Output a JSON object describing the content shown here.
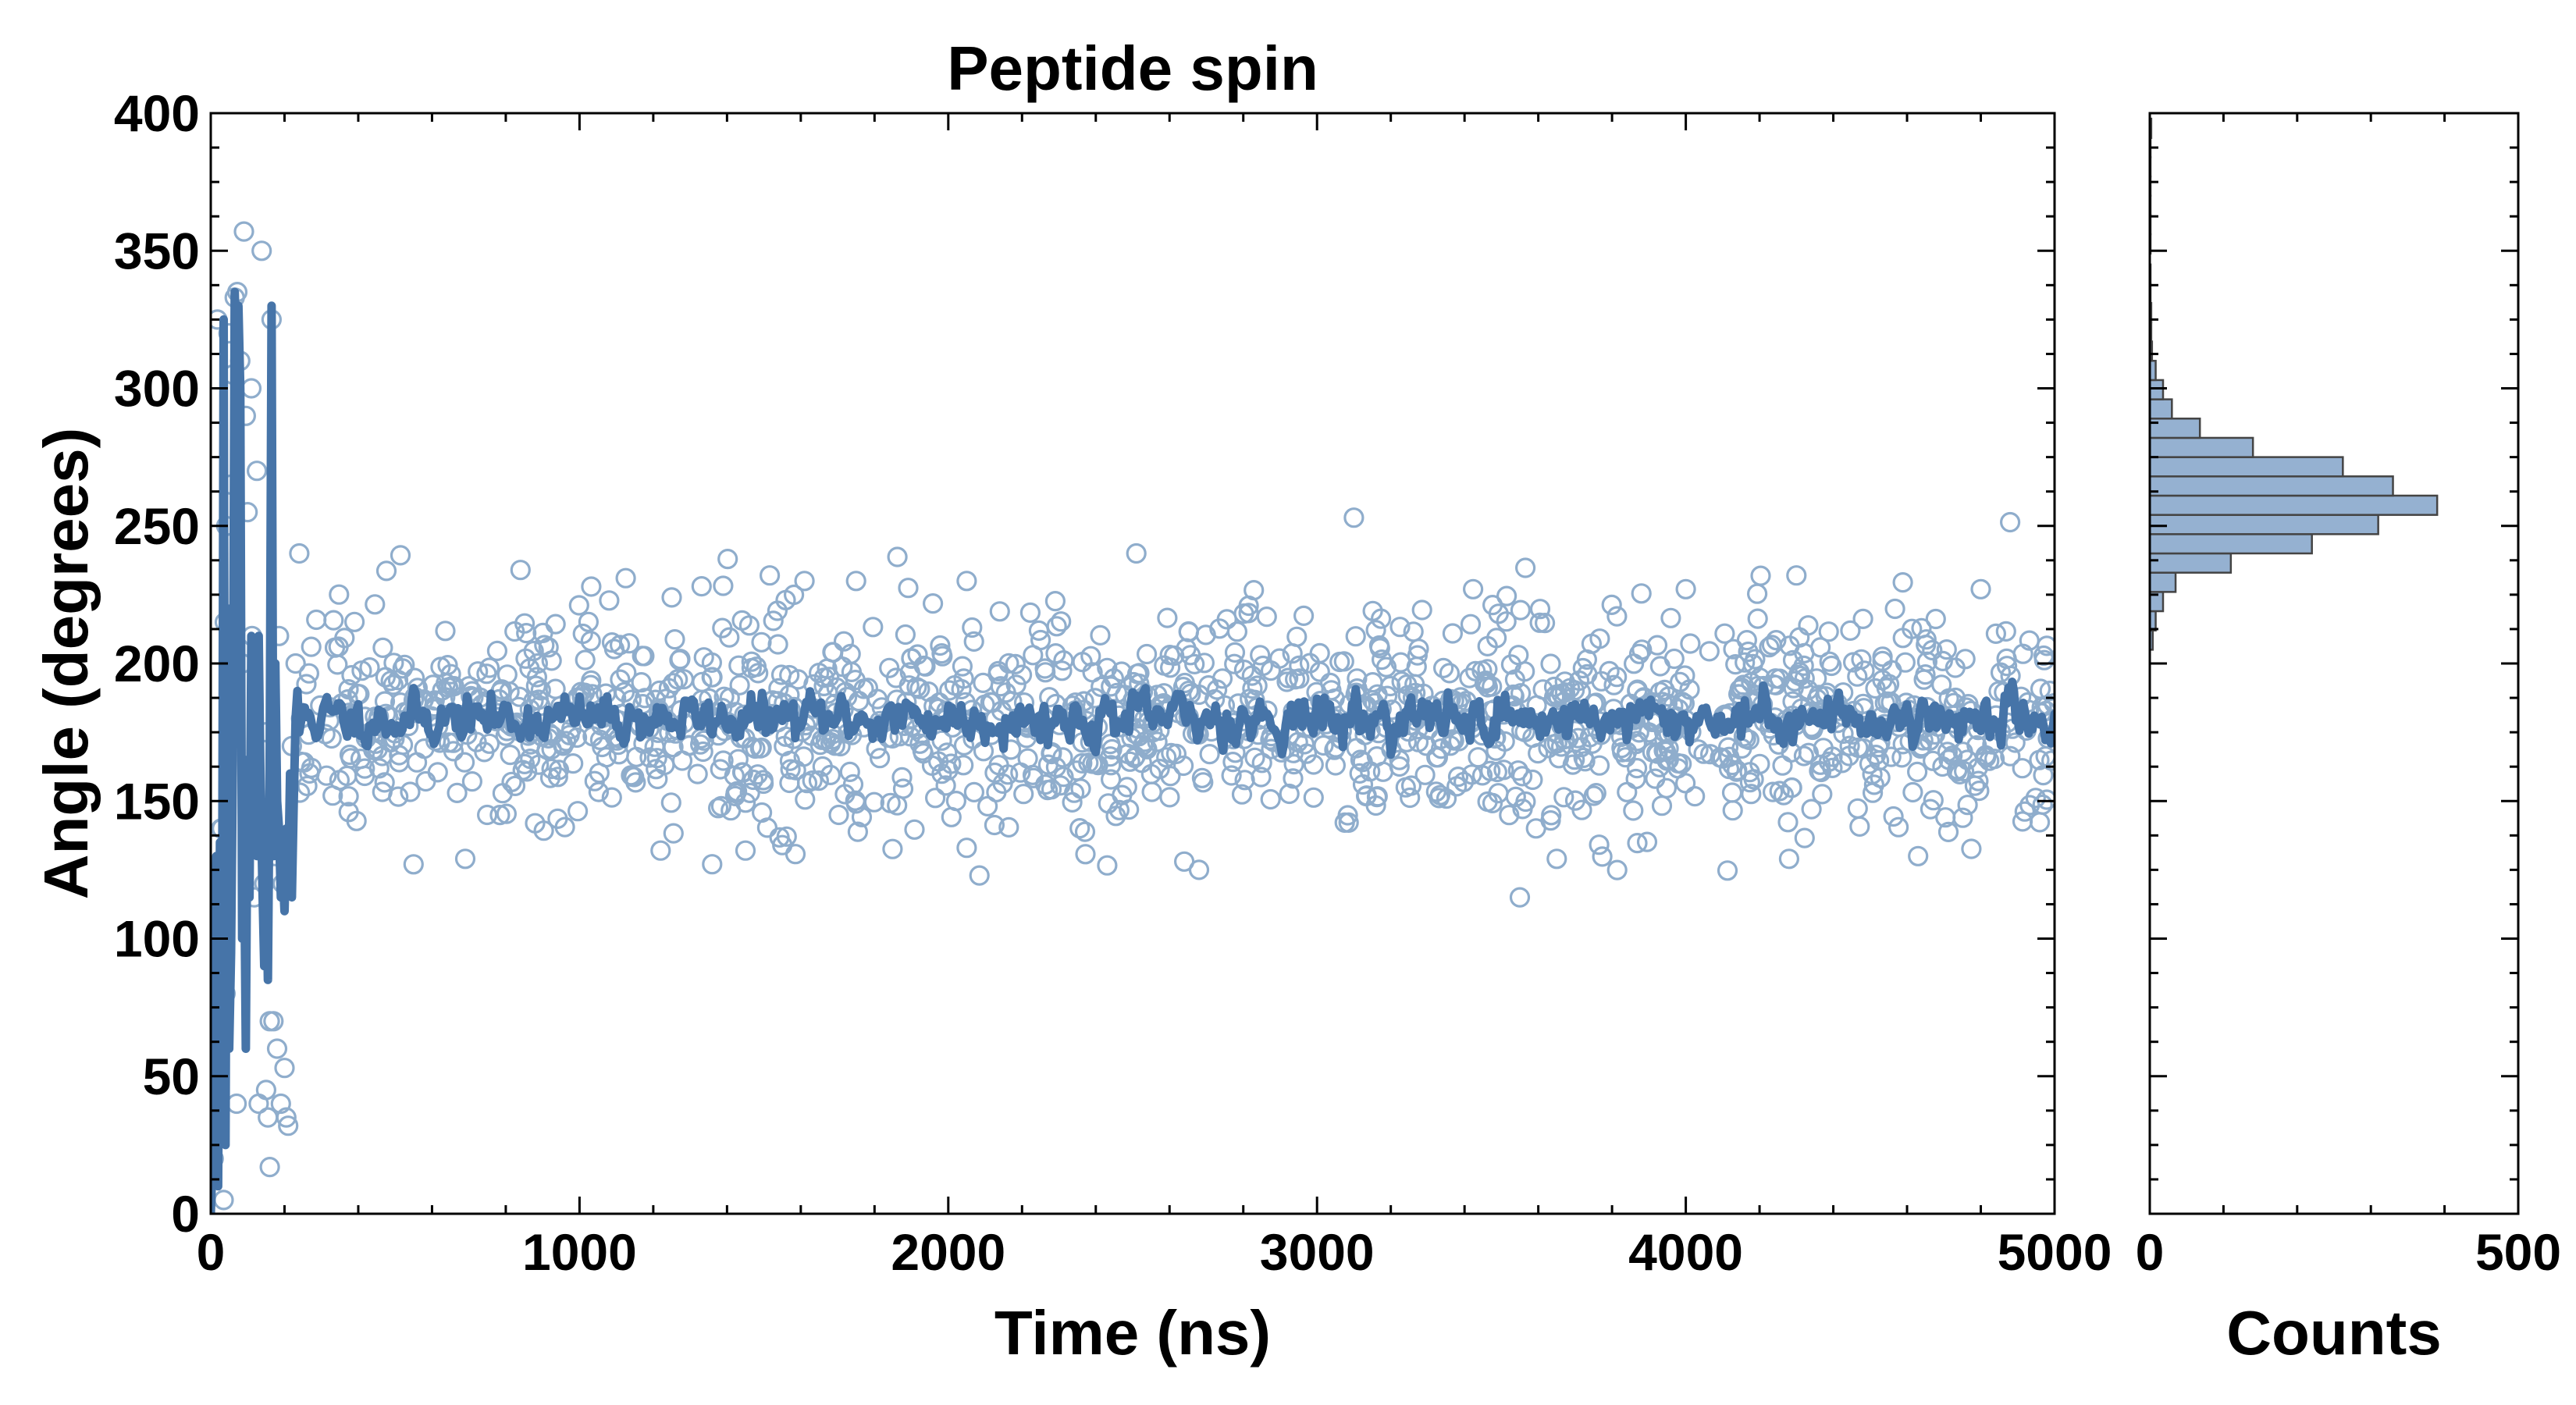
{
  "chart_data": [
    {
      "type": "scatter",
      "title": "Peptide spin",
      "xlabel": "Time (ns)",
      "ylabel": "Angle (degrees)",
      "xlim": [
        0,
        5000
      ],
      "ylim": [
        0,
        400
      ],
      "xticks": [
        0,
        1000,
        2000,
        3000,
        4000,
        5000
      ],
      "yticks": [
        0,
        50,
        100,
        150,
        200,
        250,
        300,
        350,
        400
      ],
      "grid": false,
      "legend": "none",
      "series": [
        {
          "kind": "scatter-open-circles",
          "color": "#8fadcc",
          "points_early": [
            [
              8,
              20
            ],
            [
              12,
              95
            ],
            [
              18,
              325
            ],
            [
              22,
              60
            ],
            [
              28,
              140
            ],
            [
              35,
              5
            ],
            [
              38,
              215
            ],
            [
              42,
              250
            ],
            [
              48,
              320
            ],
            [
              55,
              265
            ],
            [
              60,
              305
            ],
            [
              65,
              333
            ],
            [
              72,
              335
            ],
            [
              80,
              310
            ],
            [
              85,
              200
            ],
            [
              90,
              357
            ],
            [
              95,
              290
            ],
            [
              100,
              255
            ],
            [
              105,
              160
            ],
            [
              110,
              300
            ],
            [
              118,
              115
            ],
            [
              125,
              270
            ],
            [
              130,
              40
            ],
            [
              138,
              350
            ],
            [
              145,
              120
            ],
            [
              150,
              175
            ],
            [
              155,
              35
            ],
            [
              160,
              17
            ],
            [
              165,
              325
            ],
            [
              170,
              70
            ],
            [
              175,
              130
            ],
            [
              180,
              60
            ],
            [
              185,
              210
            ],
            [
              190,
              40
            ],
            [
              195,
              120
            ],
            [
              200,
              53
            ],
            [
              205,
              35
            ],
            [
              210,
              32
            ],
            [
              220,
              170
            ],
            [
              230,
              200
            ],
            [
              240,
              240
            ],
            [
              245,
              180
            ],
            [
              70,
              40
            ],
            [
              30,
              140
            ],
            [
              40,
              80
            ],
            [
              112,
              210
            ],
            [
              150,
              45
            ],
            [
              160,
              70
            ]
          ],
          "outliers": [
            [
              840,
              234
            ],
            [
              1250,
              224
            ],
            [
              1610,
              230
            ],
            [
              1750,
              230
            ],
            [
              2050,
              230
            ],
            [
              2510,
              240
            ],
            [
              3100,
              253
            ],
            [
              4000,
              227
            ],
            [
              4300,
              232
            ],
            [
              4800,
              227
            ],
            [
              3550,
              115
            ],
            [
              3650,
              129
            ],
            [
              2640,
              128
            ],
            [
              2680,
              125
            ],
            [
              1220,
              132
            ],
            [
              1450,
              132
            ],
            [
              4280,
              129
            ],
            [
              4630,
              130
            ],
            [
              550,
              127
            ],
            [
              690,
              129
            ],
            [
              2050,
              133
            ],
            [
              1550,
              134
            ]
          ],
          "band": {
            "x_start": 240,
            "x_end": 5000,
            "count": 1450,
            "center": 180,
            "spread": 19,
            "seed": 7
          }
        },
        {
          "kind": "line",
          "color": "#4674a8",
          "points_early": [
            [
              0,
              0
            ],
            [
              10,
              40
            ],
            [
              15,
              130
            ],
            [
              20,
              10
            ],
            [
              25,
              135
            ],
            [
              30,
              60
            ],
            [
              35,
              325
            ],
            [
              40,
              25
            ],
            [
              45,
              220
            ],
            [
              50,
              60
            ],
            [
              55,
              95
            ],
            [
              60,
              165
            ],
            [
              65,
              335
            ],
            [
              70,
              305
            ],
            [
              75,
              330
            ],
            [
              80,
              300
            ],
            [
              85,
              100
            ],
            [
              90,
              140
            ],
            [
              95,
              60
            ],
            [
              100,
              165
            ],
            [
              105,
              115
            ],
            [
              110,
              210
            ],
            [
              115,
              155
            ],
            [
              120,
              135
            ],
            [
              125,
              130
            ],
            [
              130,
              210
            ],
            [
              135,
              155
            ],
            [
              140,
              120
            ],
            [
              145,
              90
            ],
            [
              150,
              125
            ],
            [
              155,
              85
            ],
            [
              160,
              170
            ],
            [
              165,
              330
            ],
            [
              170,
              130
            ],
            [
              175,
              200
            ],
            [
              180,
              150
            ],
            [
              185,
              140
            ],
            [
              190,
              115
            ],
            [
              195,
              125
            ],
            [
              200,
              110
            ],
            [
              205,
              140
            ],
            [
              210,
              120
            ],
            [
              215,
              160
            ],
            [
              220,
              115
            ],
            [
              225,
              150
            ],
            [
              230,
              180
            ],
            [
              235,
              190
            ],
            [
              240,
              175
            ]
          ],
          "band": {
            "x_start": 240,
            "x_end": 5000,
            "step": 5,
            "center": 180,
            "spread": 8,
            "seed": 11
          }
        }
      ]
    },
    {
      "type": "bar",
      "orientation": "horizontal",
      "xlabel": "Counts",
      "xlim": [
        0,
        500
      ],
      "xticks": [
        0,
        500
      ],
      "ylim": [
        0,
        400
      ],
      "bar_color": "#95b1d1",
      "edge_color": "#444444",
      "bins": [
        {
          "y0": 205,
          "y1": 212,
          "value": 4
        },
        {
          "y0": 212,
          "y1": 219,
          "value": 8
        },
        {
          "y0": 219,
          "y1": 226,
          "value": 18
        },
        {
          "y0": 226,
          "y1": 233,
          "value": 35
        },
        {
          "y0": 233,
          "y1": 240,
          "value": 110
        },
        {
          "y0": 240,
          "y1": 247,
          "value": 220
        },
        {
          "y0": 247,
          "y1": 254,
          "value": 310
        },
        {
          "y0": 254,
          "y1": 261,
          "value": 390
        },
        {
          "y0": 261,
          "y1": 268,
          "value": 330
        },
        {
          "y0": 268,
          "y1": 275,
          "value": 262
        },
        {
          "y0": 275,
          "y1": 282,
          "value": 140
        },
        {
          "y0": 282,
          "y1": 289,
          "value": 68
        },
        {
          "y0": 289,
          "y1": 296,
          "value": 30
        },
        {
          "y0": 296,
          "y1": 303,
          "value": 18
        },
        {
          "y0": 303,
          "y1": 310,
          "value": 8
        },
        {
          "y0": 310,
          "y1": 317,
          "value": 3
        },
        {
          "y0": 317,
          "y1": 324,
          "value": 2
        },
        {
          "y0": 324,
          "y1": 331,
          "value": 2
        },
        {
          "y0": 331,
          "y1": 338,
          "value": 1
        },
        {
          "y0": 338,
          "y1": 345,
          "value": 1
        },
        {
          "y0": 349,
          "y1": 356,
          "value": 1
        },
        {
          "y0": 356,
          "y1": 363,
          "value": 1
        },
        {
          "y0": 363,
          "y1": 370,
          "value": 1
        },
        {
          "y0": 370,
          "y1": 377,
          "value": 1
        },
        {
          "y0": 377,
          "y1": 384,
          "value": 1
        },
        {
          "y0": 384,
          "y1": 391,
          "value": 1
        },
        {
          "y0": 391,
          "y1": 398,
          "value": 2
        }
      ]
    }
  ]
}
